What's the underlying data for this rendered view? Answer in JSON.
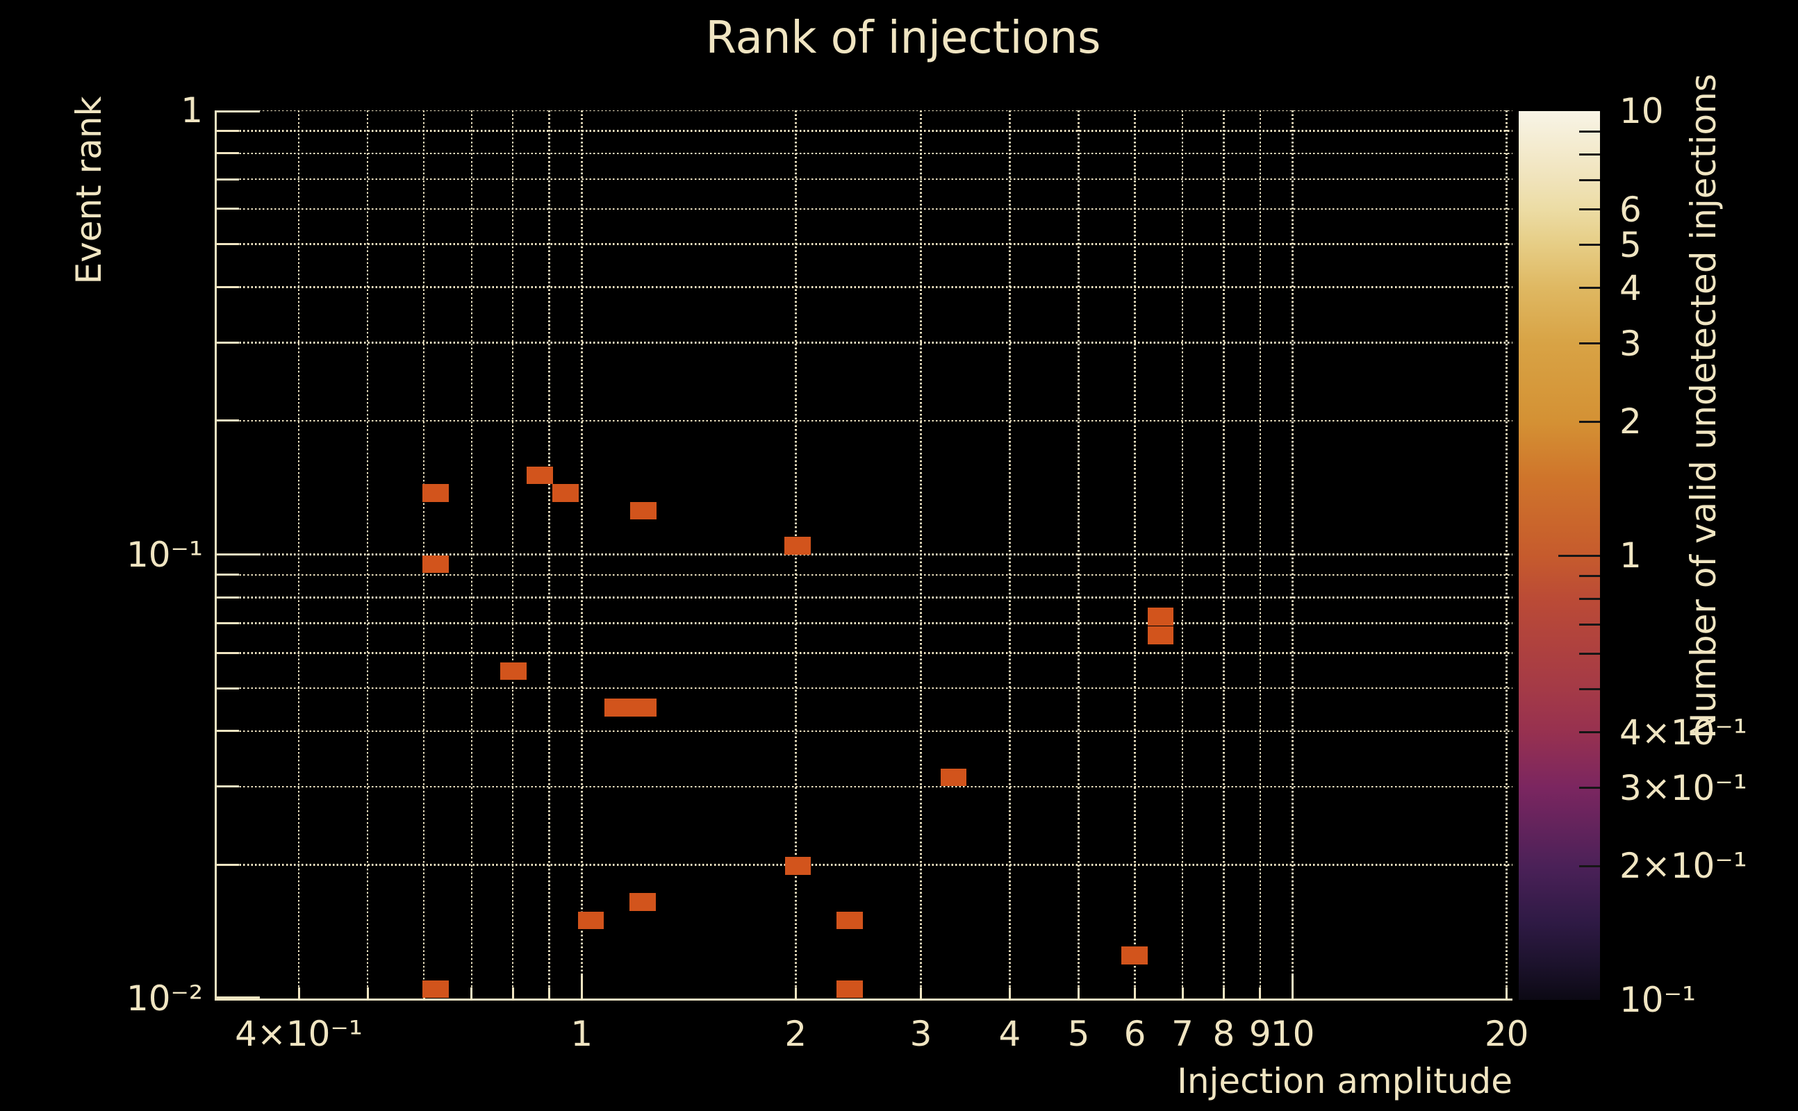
{
  "chart_data": {
    "type": "heatmap",
    "title": "Rank of injections",
    "background": "#000000",
    "foreground": "#f0e5c2",
    "grid_color": "#eee3c2",
    "grid_style": "dotted",
    "legend_position": "none",
    "x": {
      "label": "Injection amplitude",
      "scale": "log",
      "min": 0.306,
      "max": 20.38,
      "tick_labels": [
        {
          "v": 0.4,
          "text": "4×10⁻¹"
        },
        {
          "v": 1,
          "text": "1"
        },
        {
          "v": 2,
          "text": "2"
        },
        {
          "v": 3,
          "text": "3"
        },
        {
          "v": 4,
          "text": "4"
        },
        {
          "v": 5,
          "text": "5"
        },
        {
          "v": 6,
          "text": "6"
        },
        {
          "v": 7,
          "text": "7"
        },
        {
          "v": 8,
          "text": "8"
        },
        {
          "v": 9,
          "text": "9"
        },
        {
          "v": 10,
          "text": "10"
        },
        {
          "v": 20,
          "text": "20"
        }
      ],
      "gridlines": [
        0.4,
        0.5,
        0.6,
        0.7,
        0.8,
        0.9,
        1,
        2,
        3,
        4,
        5,
        6,
        7,
        8,
        9,
        10,
        20
      ],
      "major_ticks": [
        1,
        10
      ],
      "minor_ticks": [
        0.4,
        0.5,
        0.6,
        0.7,
        0.8,
        0.9,
        2,
        3,
        4,
        5,
        6,
        7,
        8,
        9,
        20
      ]
    },
    "y": {
      "label": "Event rank",
      "scale": "log",
      "min": 0.01,
      "max": 1,
      "tick_labels": [
        {
          "v": 1,
          "text": "1"
        },
        {
          "v": 0.1,
          "text": "10⁻¹"
        },
        {
          "v": 0.01,
          "text": "10⁻²"
        }
      ],
      "gridlines": [
        1,
        0.9,
        0.8,
        0.7,
        0.6,
        0.5,
        0.4,
        0.3,
        0.2,
        0.1,
        0.09,
        0.08,
        0.07,
        0.06,
        0.05,
        0.04,
        0.03,
        0.02
      ],
      "major_ticks": [
        1,
        0.1,
        0.01
      ],
      "minor_ticks": [
        0.9,
        0.8,
        0.7,
        0.6,
        0.5,
        0.4,
        0.3,
        0.2,
        0.09,
        0.08,
        0.07,
        0.06,
        0.05,
        0.04,
        0.03,
        0.02
      ]
    },
    "colorbar": {
      "label": "Number of valid undetected injections",
      "scale": "log",
      "min": 0.1,
      "max": 10,
      "tick_labels": [
        {
          "v": 10,
          "text": "10"
        },
        {
          "v": 6,
          "text": "6"
        },
        {
          "v": 5,
          "text": "5"
        },
        {
          "v": 4,
          "text": "4"
        },
        {
          "v": 3,
          "text": "3"
        },
        {
          "v": 2,
          "text": "2"
        },
        {
          "v": 1,
          "text": "1"
        },
        {
          "v": 0.4,
          "text": "4×10⁻¹"
        },
        {
          "v": 0.3,
          "text": "3×10⁻¹"
        },
        {
          "v": 0.2,
          "text": "2×10⁻¹"
        },
        {
          "v": 0.1,
          "text": "10⁻¹"
        }
      ],
      "major_ticks": [
        1
      ],
      "minor_ticks": [
        9,
        8,
        7,
        6,
        5,
        4,
        3,
        2,
        0.9,
        0.8,
        0.7,
        0.6,
        0.5,
        0.4,
        0.3,
        0.2
      ],
      "gradient": [
        {
          "v": 10,
          "c": "#f8f4e6"
        },
        {
          "v": 7,
          "c": "#f0e3ba"
        },
        {
          "v": 6,
          "c": "#ecdca4"
        },
        {
          "v": 5,
          "c": "#e6cd85"
        },
        {
          "v": 4,
          "c": "#dfb862"
        },
        {
          "v": 3,
          "c": "#d8a345"
        },
        {
          "v": 2,
          "c": "#d49134"
        },
        {
          "v": 1.5,
          "c": "#cf752b"
        },
        {
          "v": 1,
          "c": "#c65b2d"
        },
        {
          "v": 0.8,
          "c": "#bb4b36"
        },
        {
          "v": 0.6,
          "c": "#ad4040"
        },
        {
          "v": 0.5,
          "c": "#a43a47"
        },
        {
          "v": 0.4,
          "c": "#973150"
        },
        {
          "v": 0.3,
          "c": "#7b2660"
        },
        {
          "v": 0.2,
          "c": "#4b2158"
        },
        {
          "v": 0.15,
          "c": "#2f1a45"
        },
        {
          "v": 0.12,
          "c": "#1c122c"
        },
        {
          "v": 0.1,
          "c": "#0c0914"
        }
      ]
    },
    "cell_color": "#d2541c",
    "cell_value": 1,
    "cell_size_log10": {
      "x": 0.0366,
      "y": 0.04
    },
    "cells": [
      {
        "x": 0.623,
        "y": 0.1375,
        "count": 1
      },
      {
        "x": 0.873,
        "y": 0.1507,
        "count": 1
      },
      {
        "x": 0.949,
        "y": 0.1375,
        "count": 1
      },
      {
        "x": 1.221,
        "y": 0.1254,
        "count": 1
      },
      {
        "x": 0.623,
        "y": 0.0951,
        "count": 1
      },
      {
        "x": 0.802,
        "y": 0.0546,
        "count": 1
      },
      {
        "x": 1.123,
        "y": 0.0452,
        "count": 1
      },
      {
        "x": 1.223,
        "y": 0.0452,
        "count": 1
      },
      {
        "x": 2.013,
        "y": 0.1046,
        "count": 1
      },
      {
        "x": 6.518,
        "y": 0.0724,
        "count": 1
      },
      {
        "x": 6.518,
        "y": 0.0658,
        "count": 1
      },
      {
        "x": 3.334,
        "y": 0.0315,
        "count": 1
      },
      {
        "x": 5.99,
        "y": 0.0125,
        "count": 1
      },
      {
        "x": 2.014,
        "y": 0.0199,
        "count": 1
      },
      {
        "x": 1.218,
        "y": 0.0165,
        "count": 1
      },
      {
        "x": 1.03,
        "y": 0.015,
        "count": 1
      },
      {
        "x": 2.381,
        "y": 0.015,
        "count": 1
      },
      {
        "x": 2.381,
        "y": 0.0105,
        "count": 1
      },
      {
        "x": 0.623,
        "y": 0.0105,
        "count": 1
      }
    ]
  }
}
